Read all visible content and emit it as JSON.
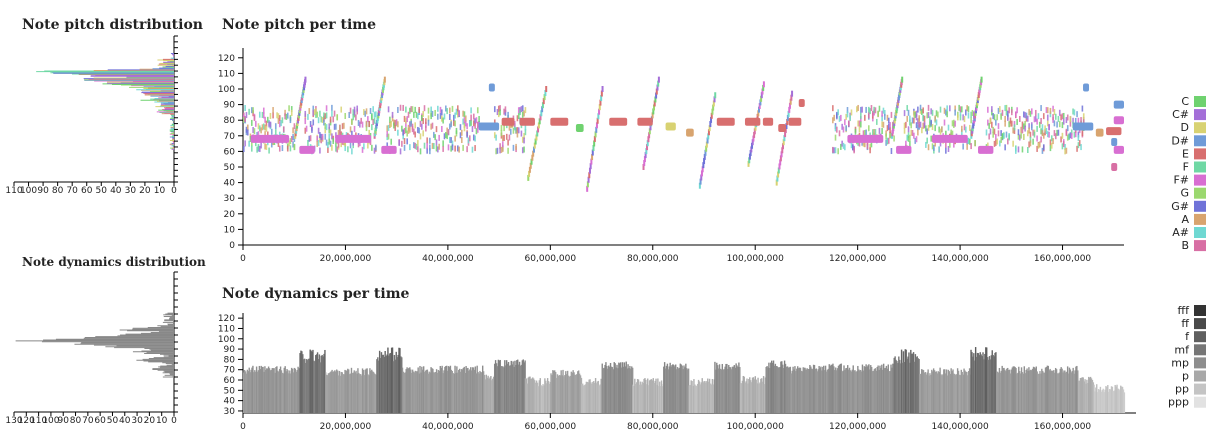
{
  "titles": {
    "pitch_dist": "Note pitch distribution",
    "pitch_time": "Note pitch per time",
    "dyn_dist": "Note dynamics distribution",
    "dyn_time": "Note dynamics per time"
  },
  "colors": {
    "axis": "#000000",
    "dyn_dark": "#555555",
    "dyn_light": "#c8c8c8"
  },
  "chart_data": [
    {
      "id": "pitch-distribution",
      "type": "bar",
      "orientation": "horizontal",
      "title": "Note pitch distribution",
      "x_ticks": [
        "110",
        "100",
        "90",
        "80",
        "70",
        "60",
        "50",
        "40",
        "30",
        "20",
        "10",
        "0"
      ],
      "xlim": [
        110,
        0
      ],
      "ylim": [
        0,
        125
      ],
      "pitch_range": [
        28,
        110
      ],
      "peaks": [
        {
          "pitch": 94,
          "count": 110
        },
        {
          "pitch": 92,
          "count": 90
        },
        {
          "pitch": 88,
          "count": 75
        },
        {
          "pitch": 84,
          "count": 55
        },
        {
          "pitch": 80,
          "count": 25
        },
        {
          "pitch": 76,
          "count": 20
        },
        {
          "pitch": 70,
          "count": 14
        },
        {
          "pitch": 64,
          "count": 8
        }
      ]
    },
    {
      "id": "pitch-per-time",
      "type": "scatter",
      "title": "Note pitch per time",
      "ylim": [
        0,
        125
      ],
      "y_ticks": [
        0,
        10,
        20,
        30,
        40,
        50,
        60,
        70,
        80,
        90,
        100,
        110,
        120
      ],
      "xlim": [
        0,
        172000000
      ],
      "x_ticks": [
        "0",
        "20,000,000",
        "40,000,000",
        "60,000,000",
        "80,000,000",
        "100,000,000",
        "120,000,000",
        "140,000,000",
        "160,000,000"
      ],
      "x_tick_values": [
        0,
        20000000,
        40000000,
        60000000,
        80000000,
        100000000,
        120000000,
        140000000,
        160000000
      ],
      "legend": {
        "position": "right",
        "entries": [
          {
            "label": "C",
            "color": "#6fd26f"
          },
          {
            "label": "C#",
            "color": "#a46fd8"
          },
          {
            "label": "D",
            "color": "#d8d272"
          },
          {
            "label": "D#",
            "color": "#6f9bd8"
          },
          {
            "label": "E",
            "color": "#d86f6f"
          },
          {
            "label": "F",
            "color": "#6fd8a4"
          },
          {
            "label": "F#",
            "color": "#d86fd2"
          },
          {
            "label": "G",
            "color": "#9bd86f"
          },
          {
            "label": "G#",
            "color": "#6f72d8"
          },
          {
            "label": "A",
            "color": "#d8a46f"
          },
          {
            "label": "A#",
            "color": "#6fd8d2"
          },
          {
            "label": "B",
            "color": "#d86fa4"
          }
        ]
      },
      "long_notes": [
        {
          "start": 1500000,
          "end": 9000000,
          "pitch": 68,
          "color": "#d86fd2"
        },
        {
          "start": 11000000,
          "end": 14000000,
          "pitch": 61,
          "color": "#d86fd2"
        },
        {
          "start": 18000000,
          "end": 25000000,
          "pitch": 68,
          "color": "#d86fd2"
        },
        {
          "start": 27000000,
          "end": 30000000,
          "pitch": 61,
          "color": "#d86fd2"
        },
        {
          "start": 46000000,
          "end": 50000000,
          "pitch": 76,
          "color": "#6f9bd8"
        },
        {
          "start": 48000000,
          "end": 49000000,
          "pitch": 101,
          "color": "#6f9bd8"
        },
        {
          "start": 50500000,
          "end": 53000000,
          "pitch": 79,
          "color": "#d86f6f"
        },
        {
          "start": 54000000,
          "end": 57000000,
          "pitch": 79,
          "color": "#d86f6f"
        },
        {
          "start": 60000000,
          "end": 63500000,
          "pitch": 79,
          "color": "#d86f6f"
        },
        {
          "start": 65000000,
          "end": 66500000,
          "pitch": 75,
          "color": "#6fd26f"
        },
        {
          "start": 71500000,
          "end": 75000000,
          "pitch": 79,
          "color": "#d86f6f"
        },
        {
          "start": 77000000,
          "end": 80000000,
          "pitch": 79,
          "color": "#d86f6f"
        },
        {
          "start": 82500000,
          "end": 84500000,
          "pitch": 76,
          "color": "#d8d272"
        },
        {
          "start": 86500000,
          "end": 88000000,
          "pitch": 72,
          "color": "#d8a46f"
        },
        {
          "start": 92500000,
          "end": 96000000,
          "pitch": 79,
          "color": "#d86f6f"
        },
        {
          "start": 98000000,
          "end": 101000000,
          "pitch": 79,
          "color": "#d86f6f"
        },
        {
          "start": 101500000,
          "end": 103500000,
          "pitch": 79,
          "color": "#d86f6f"
        },
        {
          "start": 104500000,
          "end": 106000000,
          "pitch": 75,
          "color": "#d86f6f"
        },
        {
          "start": 106500000,
          "end": 109000000,
          "pitch": 79,
          "color": "#d86f6f"
        },
        {
          "start": 108500000,
          "end": 109500000,
          "pitch": 91,
          "color": "#d86f6f"
        },
        {
          "start": 118000000,
          "end": 125000000,
          "pitch": 68,
          "color": "#d86fd2"
        },
        {
          "start": 127500000,
          "end": 130500000,
          "pitch": 61,
          "color": "#d86fd2"
        },
        {
          "start": 134500000,
          "end": 141500000,
          "pitch": 68,
          "color": "#d86fd2"
        },
        {
          "start": 143500000,
          "end": 146500000,
          "pitch": 61,
          "color": "#d86fd2"
        },
        {
          "start": 162000000,
          "end": 166000000,
          "pitch": 76,
          "color": "#6f9bd8"
        },
        {
          "start": 164000000,
          "end": 165000000,
          "pitch": 101,
          "color": "#6f9bd8"
        },
        {
          "start": 166500000,
          "end": 168000000,
          "pitch": 72,
          "color": "#d8a46f"
        },
        {
          "start": 168500000,
          "end": 171500000,
          "pitch": 73,
          "color": "#d86f6f"
        },
        {
          "start": 170000000,
          "end": 172000000,
          "pitch": 90,
          "color": "#6f9bd8"
        },
        {
          "start": 170000000,
          "end": 172000000,
          "pitch": 80,
          "color": "#d86fd2"
        },
        {
          "start": 170000000,
          "end": 172000000,
          "pitch": 61,
          "color": "#d86fd2"
        },
        {
          "start": 169500000,
          "end": 170500000,
          "pitch": 66,
          "color": "#6f9bd8"
        },
        {
          "start": 169500000,
          "end": 170500000,
          "pitch": 50,
          "color": "#d86fa4"
        }
      ],
      "runs": [
        {
          "start": 10000000,
          "end": 12000000,
          "from": 70,
          "to": 106
        },
        {
          "start": 25500000,
          "end": 27500000,
          "from": 70,
          "to": 106
        },
        {
          "start": 55500000,
          "end": 59000000,
          "from": 43,
          "to": 100
        },
        {
          "start": 67000000,
          "end": 70000000,
          "from": 36,
          "to": 100
        },
        {
          "start": 78000000,
          "end": 81000000,
          "from": 50,
          "to": 106
        },
        {
          "start": 89000000,
          "end": 92000000,
          "from": 38,
          "to": 96
        },
        {
          "start": 98500000,
          "end": 101500000,
          "from": 52,
          "to": 103
        },
        {
          "start": 104000000,
          "end": 107000000,
          "from": 40,
          "to": 97
        },
        {
          "start": 126500000,
          "end": 128500000,
          "from": 70,
          "to": 106
        },
        {
          "start": 142000000,
          "end": 144000000,
          "from": 70,
          "to": 106
        }
      ]
    },
    {
      "id": "dynamics-distribution",
      "type": "bar",
      "orientation": "horizontal",
      "title": "Note dynamics distribution",
      "x_ticks": [
        "130",
        "120",
        "110",
        "100",
        "90",
        "80",
        "70",
        "60",
        "50",
        "40",
        "30",
        "20",
        "10",
        "0"
      ],
      "xlim": [
        130,
        0
      ],
      "ylim": [
        25,
        125
      ],
      "peaks": [
        {
          "velocity": 76,
          "count": 130
        },
        {
          "velocity": 74,
          "count": 95
        },
        {
          "velocity": 78,
          "count": 85
        },
        {
          "velocity": 72,
          "count": 70
        },
        {
          "velocity": 80,
          "count": 50
        },
        {
          "velocity": 84,
          "count": 40
        },
        {
          "velocity": 68,
          "count": 30
        },
        {
          "velocity": 62,
          "count": 25
        },
        {
          "velocity": 56,
          "count": 15
        }
      ]
    },
    {
      "id": "dynamics-per-time",
      "type": "bar",
      "title": "Note dynamics per time",
      "ylim": [
        28,
        125
      ],
      "y_ticks": [
        30,
        40,
        50,
        60,
        70,
        80,
        90,
        100,
        110,
        120
      ],
      "xlim": [
        0,
        172000000
      ],
      "x_ticks": [
        "0",
        "20,000,000",
        "40,000,000",
        "60,000,000",
        "80,000,000",
        "100,000,000",
        "120,000,000",
        "140,000,000",
        "160,000,000"
      ],
      "x_tick_values": [
        0,
        20000000,
        40000000,
        60000000,
        80000000,
        100000000,
        120000000,
        140000000,
        160000000
      ],
      "legend": {
        "position": "right",
        "entries": [
          {
            "label": "fff",
            "color": "#333333"
          },
          {
            "label": "ff",
            "color": "#4a4a4a"
          },
          {
            "label": "f",
            "color": "#5f5f5f"
          },
          {
            "label": "mf",
            "color": "#767676"
          },
          {
            "label": "mp",
            "color": "#8e8e8e"
          },
          {
            "label": "p",
            "color": "#a8a8a8"
          },
          {
            "label": "pp",
            "color": "#c4c4c4"
          },
          {
            "label": "ppp",
            "color": "#e2e2e2"
          }
        ]
      },
      "segments": [
        {
          "start": 0,
          "end": 11000000,
          "level": 70
        },
        {
          "start": 11000000,
          "end": 16000000,
          "level": 83
        },
        {
          "start": 16000000,
          "end": 26000000,
          "level": 68
        },
        {
          "start": 26000000,
          "end": 31000000,
          "level": 85
        },
        {
          "start": 31000000,
          "end": 47000000,
          "level": 70
        },
        {
          "start": 47000000,
          "end": 49000000,
          "level": 62
        },
        {
          "start": 49000000,
          "end": 55000000,
          "level": 76
        },
        {
          "start": 55000000,
          "end": 57000000,
          "level": 60
        },
        {
          "start": 57000000,
          "end": 60000000,
          "level": 58
        },
        {
          "start": 60000000,
          "end": 66000000,
          "level": 66
        },
        {
          "start": 66000000,
          "end": 70000000,
          "level": 58
        },
        {
          "start": 70000000,
          "end": 76000000,
          "level": 74
        },
        {
          "start": 76000000,
          "end": 82000000,
          "level": 58
        },
        {
          "start": 82000000,
          "end": 87000000,
          "level": 74
        },
        {
          "start": 87000000,
          "end": 92000000,
          "level": 58
        },
        {
          "start": 92000000,
          "end": 97000000,
          "level": 74
        },
        {
          "start": 97000000,
          "end": 102000000,
          "level": 60
        },
        {
          "start": 102000000,
          "end": 106000000,
          "level": 75
        },
        {
          "start": 106000000,
          "end": 110000000,
          "level": 70
        },
        {
          "start": 110000000,
          "end": 127000000,
          "level": 72
        },
        {
          "start": 127000000,
          "end": 132000000,
          "level": 83
        },
        {
          "start": 132000000,
          "end": 142000000,
          "level": 68
        },
        {
          "start": 142000000,
          "end": 147000000,
          "level": 85
        },
        {
          "start": 147000000,
          "end": 163000000,
          "level": 70
        },
        {
          "start": 163000000,
          "end": 166000000,
          "level": 60
        },
        {
          "start": 166000000,
          "end": 172000000,
          "level": 52
        }
      ]
    }
  ]
}
